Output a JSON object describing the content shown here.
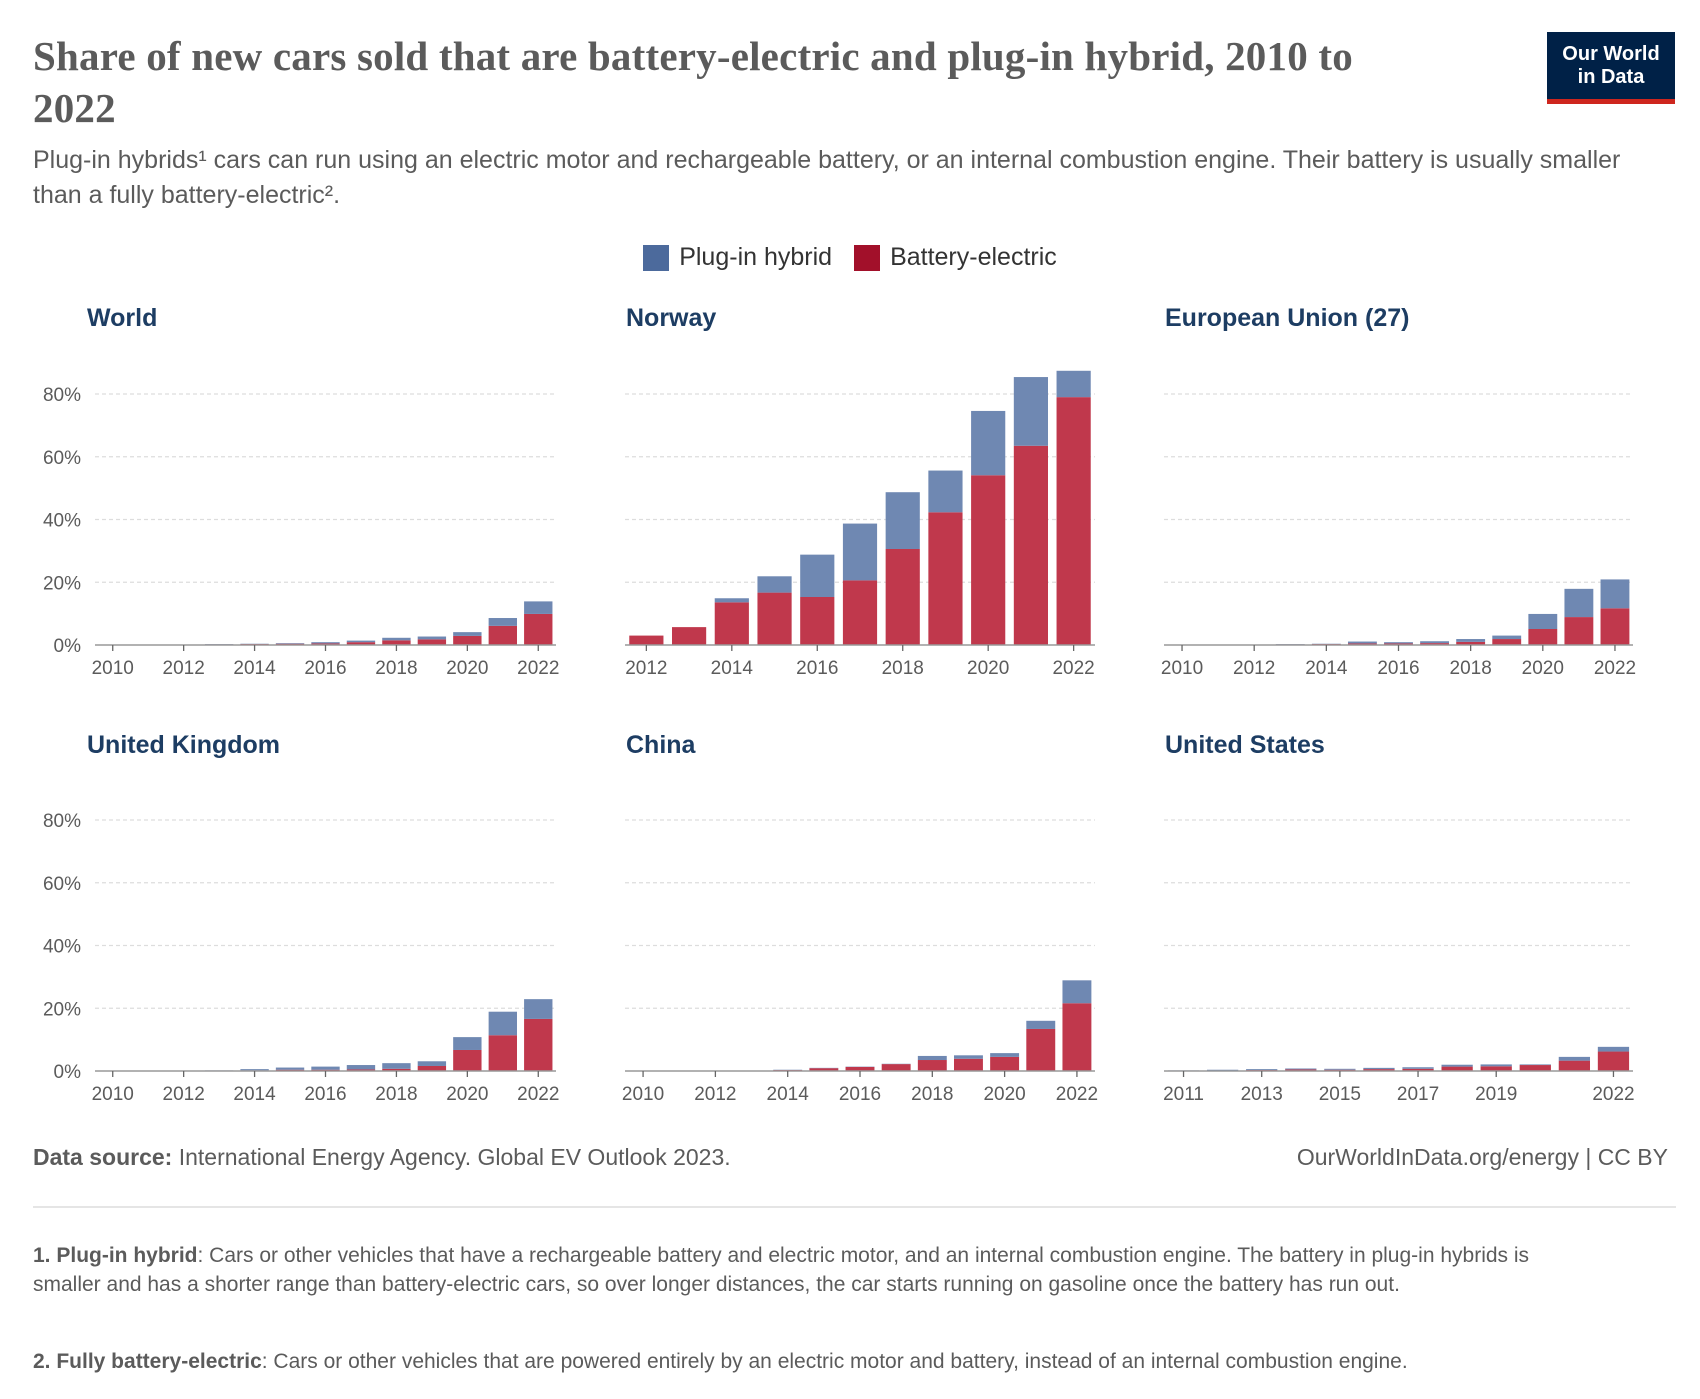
{
  "header": {
    "title": "Share of new cars sold that are battery-electric and plug-in hybrid, 2010 to 2022",
    "subtitle": "Plug-in hybrids¹ cars can run using an electric motor and rechargeable battery, or an internal combustion engine. Their battery is usually smaller than a fully battery-electric².",
    "logo_line1": "Our World",
    "logo_line2": "in Data"
  },
  "legend": [
    {
      "label": "Plug-in hybrid",
      "color": "#4c6a9c"
    },
    {
      "label": "Battery-electric",
      "color": "#a2102a"
    }
  ],
  "colors": {
    "plugin_bar": "#6f88b2",
    "bev_bar": "#c0384c",
    "grid": "#dddddd",
    "axis": "#999999"
  },
  "chart_data": [
    {
      "type": "bar",
      "stacked": true,
      "title": "World",
      "years": [
        2010,
        2011,
        2012,
        2013,
        2014,
        2015,
        2016,
        2017,
        2018,
        2019,
        2020,
        2021,
        2022
      ],
      "x_ticks": [
        "2010",
        "2012",
        "2014",
        "2016",
        "2018",
        "2020",
        "2022"
      ],
      "ylim": [
        0,
        90
      ],
      "y_ticks": [
        0,
        20,
        40,
        60,
        80
      ],
      "y_tick_labels": [
        "0%",
        "20%",
        "40%",
        "60%",
        "80%"
      ],
      "series": [
        {
          "name": "Battery-electric",
          "values": [
            0,
            0.05,
            0.1,
            0.2,
            0.3,
            0.4,
            0.5,
            0.9,
            1.5,
            1.8,
            2.9,
            6.1,
            9.9
          ]
        },
        {
          "name": "Plug-in hybrid",
          "values": [
            0,
            0,
            0.05,
            0.1,
            0.1,
            0.2,
            0.4,
            0.5,
            0.8,
            0.9,
            1.2,
            2.5,
            4.0
          ]
        }
      ]
    },
    {
      "type": "bar",
      "stacked": true,
      "title": "Norway",
      "years": [
        2012,
        2013,
        2014,
        2015,
        2016,
        2017,
        2018,
        2019,
        2020,
        2021,
        2022
      ],
      "x_ticks": [
        "2012",
        "2014",
        "2016",
        "2018",
        "2020",
        "2022"
      ],
      "ylim": [
        0,
        90
      ],
      "y_ticks": [
        0,
        20,
        40,
        60,
        80
      ],
      "series": [
        {
          "name": "Battery-electric",
          "values": [
            3.0,
            5.7,
            13.6,
            16.7,
            15.3,
            20.6,
            30.6,
            42.3,
            54.1,
            63.5,
            79.0
          ]
        },
        {
          "name": "Plug-in hybrid",
          "values": [
            0,
            0,
            1.3,
            5.2,
            13.5,
            18.1,
            18.1,
            13.3,
            20.5,
            21.9,
            8.4
          ]
        }
      ]
    },
    {
      "type": "bar",
      "stacked": true,
      "title": "European Union (27)",
      "years": [
        2010,
        2011,
        2012,
        2013,
        2014,
        2015,
        2016,
        2017,
        2018,
        2019,
        2020,
        2021,
        2022
      ],
      "x_ticks": [
        "2010",
        "2012",
        "2014",
        "2016",
        "2018",
        "2020",
        "2022"
      ],
      "ylim": [
        0,
        90
      ],
      "y_ticks": [
        0,
        20,
        40,
        60,
        80
      ],
      "series": [
        {
          "name": "Battery-electric",
          "values": [
            0,
            0,
            0.1,
            0.2,
            0.3,
            0.5,
            0.5,
            0.6,
            1.0,
            1.9,
            5.1,
            8.9,
            11.7
          ]
        },
        {
          "name": "Plug-in hybrid",
          "values": [
            0,
            0,
            0,
            0.1,
            0.1,
            0.6,
            0.4,
            0.6,
            0.9,
            1.1,
            4.8,
            9.0,
            9.2
          ]
        }
      ]
    },
    {
      "type": "bar",
      "stacked": true,
      "title": "United Kingdom",
      "years": [
        2010,
        2011,
        2012,
        2013,
        2014,
        2015,
        2016,
        2017,
        2018,
        2019,
        2020,
        2021,
        2022
      ],
      "x_ticks": [
        "2010",
        "2012",
        "2014",
        "2016",
        "2018",
        "2020",
        "2022"
      ],
      "ylim": [
        0,
        90
      ],
      "y_ticks": [
        0,
        20,
        40,
        60,
        80
      ],
      "y_tick_labels": [
        "0%",
        "20%",
        "40%",
        "60%",
        "80%"
      ],
      "series": [
        {
          "name": "Battery-electric",
          "values": [
            0,
            0,
            0,
            0.1,
            0.2,
            0.4,
            0.4,
            0.5,
            0.7,
            1.6,
            6.7,
            11.4,
            16.6
          ]
        },
        {
          "name": "Plug-in hybrid",
          "values": [
            0,
            0,
            0,
            0.1,
            0.4,
            0.7,
            1.0,
            1.4,
            1.8,
            1.5,
            4.1,
            7.5,
            6.3
          ]
        }
      ]
    },
    {
      "type": "bar",
      "stacked": true,
      "title": "China",
      "years": [
        2010,
        2011,
        2012,
        2013,
        2014,
        2015,
        2016,
        2017,
        2018,
        2019,
        2020,
        2021,
        2022
      ],
      "x_ticks": [
        "2010",
        "2012",
        "2014",
        "2016",
        "2018",
        "2020",
        "2022"
      ],
      "ylim": [
        0,
        90
      ],
      "y_ticks": [
        0,
        20,
        40,
        60,
        80
      ],
      "series": [
        {
          "name": "Battery-electric",
          "values": [
            0,
            0,
            0,
            0,
            0.3,
            0.9,
            1.3,
            2.2,
            3.5,
            3.9,
            4.5,
            13.4,
            21.6
          ]
        },
        {
          "name": "Plug-in hybrid",
          "values": [
            0,
            0,
            0,
            0,
            0.1,
            0.1,
            0.1,
            0.1,
            1.3,
            1.1,
            1.2,
            2.6,
            7.3
          ]
        }
      ]
    },
    {
      "type": "bar",
      "stacked": true,
      "title": "United States",
      "years": [
        2011,
        2012,
        2013,
        2014,
        2015,
        2016,
        2017,
        2018,
        2019,
        2020,
        2021,
        2022
      ],
      "x_ticks": [
        "2011",
        "2013",
        "2015",
        "2017",
        "2019",
        "2022"
      ],
      "ylim": [
        0,
        90
      ],
      "y_ticks": [
        0,
        20,
        40,
        60,
        80
      ],
      "series": [
        {
          "name": "Battery-electric",
          "values": [
            0.1,
            0.1,
            0.3,
            0.5,
            0.4,
            0.6,
            0.7,
            1.4,
            1.5,
            1.9,
            3.3,
            6.2
          ]
        },
        {
          "name": "Plug-in hybrid",
          "values": [
            0.1,
            0.3,
            0.3,
            0.3,
            0.3,
            0.4,
            0.5,
            0.6,
            0.6,
            0.2,
            1.2,
            1.5
          ]
        }
      ]
    }
  ],
  "footer": {
    "source_label": "Data source:",
    "source_text": " International Energy Agency. Global EV Outlook 2023.",
    "url": "OurWorldInData.org/energy | CC BY"
  },
  "notes": [
    {
      "label": "1. Plug-in hybrid",
      "text": ": Cars or other vehicles that have a rechargeable battery and electric motor, and an internal combustion engine. The battery in plug-in hybrids is smaller and has a shorter range than battery-electric cars, so over longer distances, the car starts running on gasoline once the battery has run out."
    },
    {
      "label": "2. Fully battery-electric",
      "text": ": Cars or other vehicles that are powered entirely by an electric motor and battery, instead of an internal combustion engine."
    }
  ]
}
